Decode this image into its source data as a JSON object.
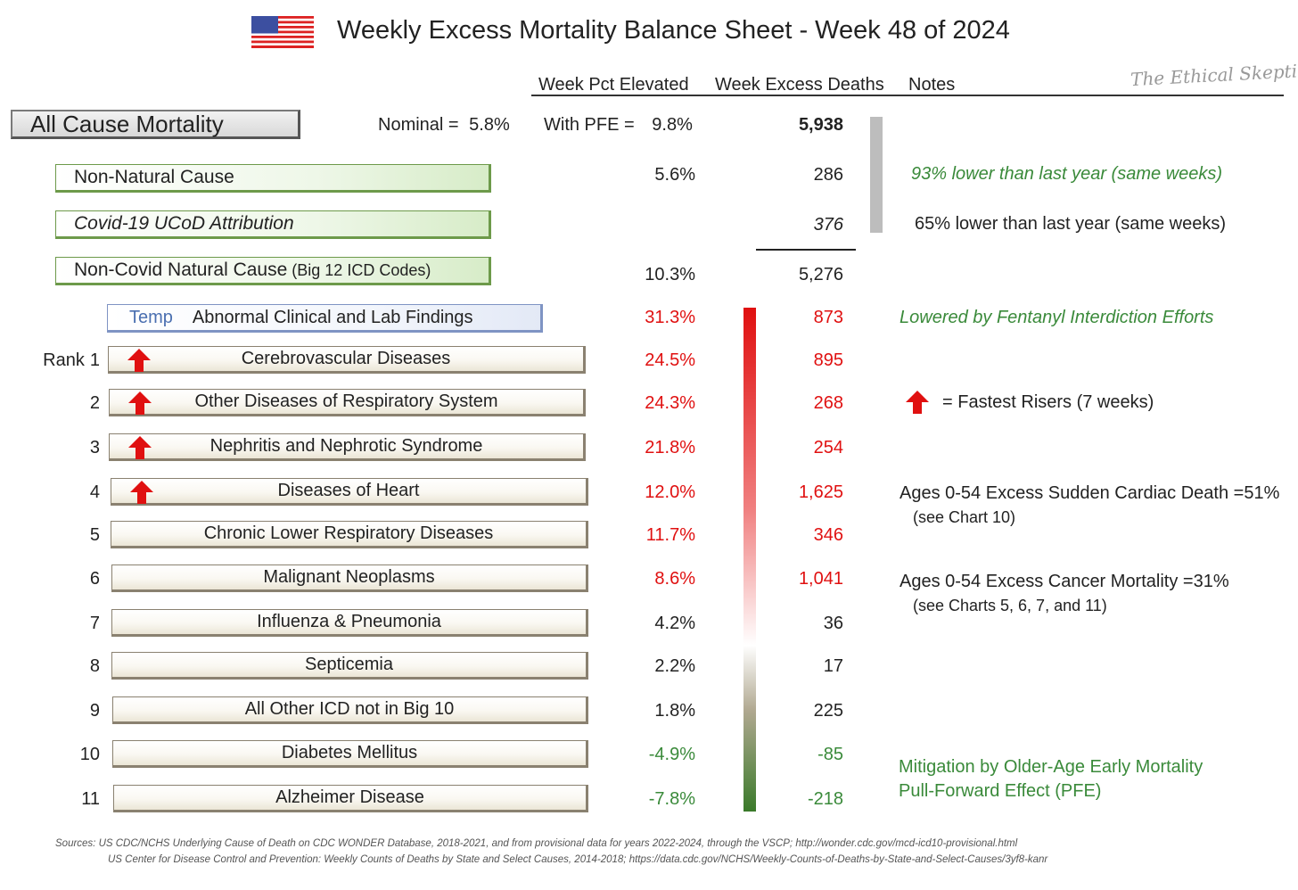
{
  "title": "Weekly Excess Mortality Balance Sheet - Week 48 of 2024",
  "watermark": "The Ethical Skeptic",
  "columns": {
    "pct": "Week Pct Elevated",
    "deaths": "Week Excess Deaths",
    "notes": "Notes"
  },
  "all_cause": {
    "label": "All Cause Mortality",
    "nominal_label": "Nominal =",
    "nominal_value": "5.8%",
    "pfe_label": "With PFE =",
    "pfe_value": "9.8%",
    "deaths": "5,938"
  },
  "categories": [
    {
      "label": "Non-Natural Cause",
      "pct": "5.6%",
      "deaths": "286",
      "note": "93% lower than last year (same weeks)"
    },
    {
      "label": "Covid-19 UCoD Attribution",
      "pct": "",
      "deaths": "376",
      "note": "65% lower than last year (same weeks)"
    },
    {
      "label": "Non-Covid Natural Cause",
      "label_suffix": "(Big 12 ICD Codes)",
      "pct": "10.3%",
      "deaths": "5,276",
      "note": ""
    }
  ],
  "temp_row": {
    "tag": "Temp",
    "label": "Abnormal Clinical and Lab Findings",
    "pct": "31.3%",
    "deaths": "873",
    "note": "Lowered by Fentanyl Interdiction Efforts"
  },
  "rank_prefix": "Rank",
  "ranks": [
    {
      "rank": "1",
      "label": "Cerebrovascular Diseases",
      "pct": "24.5%",
      "deaths": "895",
      "riser": true
    },
    {
      "rank": "2",
      "label": "Other Diseases of Respiratory System",
      "pct": "24.3%",
      "deaths": "268",
      "riser": true
    },
    {
      "rank": "3",
      "label": "Nephritis and Nephrotic Syndrome",
      "pct": "21.8%",
      "deaths": "254",
      "riser": true
    },
    {
      "rank": "4",
      "label": "Diseases of Heart",
      "pct": "12.0%",
      "deaths": "1,625",
      "riser": true
    },
    {
      "rank": "5",
      "label": "Chronic Lower Respiratory Diseases",
      "pct": "11.7%",
      "deaths": "346",
      "riser": false
    },
    {
      "rank": "6",
      "label": "Malignant Neoplasms",
      "pct": "8.6%",
      "deaths": "1,041",
      "riser": false
    },
    {
      "rank": "7",
      "label": "Influenza & Pneumonia",
      "pct": "4.2%",
      "deaths": "36",
      "riser": false
    },
    {
      "rank": "8",
      "label": "Septicemia",
      "pct": "2.2%",
      "deaths": "17",
      "riser": false
    },
    {
      "rank": "9",
      "label": "All Other ICD not in Big 10",
      "pct": "1.8%",
      "deaths": "225",
      "riser": false
    },
    {
      "rank": "10",
      "label": "Diabetes Mellitus",
      "pct": "-4.9%",
      "deaths": "-85",
      "riser": false
    },
    {
      "rank": "11",
      "label": "Alzheimer Disease",
      "pct": "-7.8%",
      "deaths": "-218",
      "riser": false
    }
  ],
  "notes": {
    "fastest_risers": "= Fastest Risers (7 weeks)",
    "cardiac_line1": "Ages 0-54 Excess Sudden Cardiac Death =51%",
    "cardiac_line2": "(see Chart 10)",
    "cancer_line1": "Ages 0-54 Excess Cancer Mortality =31%",
    "cancer_line2": "(see Charts 5, 6, 7, and 11)",
    "pfe_line1": "Mitigation by Older-Age Early Mortality",
    "pfe_line2": "Pull-Forward Effect (PFE)"
  },
  "sources": {
    "line1": "Sources:  US CDC/NCHS Underlying Cause of Death on CDC WONDER Database, 2018-2021, and from provisional data for years 2022-2024, through the VSCP; http://wonder.cdc.gov/mcd-icd10-provisional.html",
    "line2": "US Center for Disease Control and Prevention: Weekly Counts of Deaths by State and Select Causes, 2014-2018; https://data.cdc.gov/NCHS/Weekly-Counts-of-Deaths-by-State-and-Select-Causes/3yf8-kanr"
  },
  "colors": {
    "positive": "#e01010",
    "negative": "#3a8a3a",
    "gradient_top": "#e01010",
    "gradient_mid": "#ffffff",
    "gradient_bottom": "#3a7a2a",
    "gray_bar": "#bdbdbd"
  },
  "chart_data": {
    "type": "table",
    "title": "Weekly Excess Mortality Balance Sheet - Week 48 of 2024",
    "columns": [
      "Week Pct Elevated",
      "Week Excess Deaths",
      "Notes"
    ],
    "rows": [
      {
        "category": "All Cause Mortality",
        "nominal_pct": 5.8,
        "pct_with_pfe": 9.8,
        "excess_deaths": 5938
      },
      {
        "category": "Non-Natural Cause",
        "pct": 5.6,
        "excess_deaths": 286
      },
      {
        "category": "Covid-19 UCoD Attribution",
        "excess_deaths": 376
      },
      {
        "category": "Non-Covid Natural Cause (Big 12 ICD Codes)",
        "pct": 10.3,
        "excess_deaths": 5276
      },
      {
        "category": "Abnormal Clinical and Lab Findings",
        "pct": 31.3,
        "excess_deaths": 873
      },
      {
        "category": "Cerebrovascular Diseases",
        "rank": 1,
        "pct": 24.5,
        "excess_deaths": 895
      },
      {
        "category": "Other Diseases of Respiratory System",
        "rank": 2,
        "pct": 24.3,
        "excess_deaths": 268
      },
      {
        "category": "Nephritis and Nephrotic Syndrome",
        "rank": 3,
        "pct": 21.8,
        "excess_deaths": 254
      },
      {
        "category": "Diseases of Heart",
        "rank": 4,
        "pct": 12.0,
        "excess_deaths": 1625
      },
      {
        "category": "Chronic Lower Respiratory Diseases",
        "rank": 5,
        "pct": 11.7,
        "excess_deaths": 346
      },
      {
        "category": "Malignant Neoplasms",
        "rank": 6,
        "pct": 8.6,
        "excess_deaths": 1041
      },
      {
        "category": "Influenza & Pneumonia",
        "rank": 7,
        "pct": 4.2,
        "excess_deaths": 36
      },
      {
        "category": "Septicemia",
        "rank": 8,
        "pct": 2.2,
        "excess_deaths": 17
      },
      {
        "category": "All Other ICD not in Big 10",
        "rank": 9,
        "pct": 1.8,
        "excess_deaths": 225
      },
      {
        "category": "Diabetes Mellitus",
        "rank": 10,
        "pct": -4.9,
        "excess_deaths": -85
      },
      {
        "category": "Alzheimer Disease",
        "rank": 11,
        "pct": -7.8,
        "excess_deaths": -218
      }
    ]
  }
}
